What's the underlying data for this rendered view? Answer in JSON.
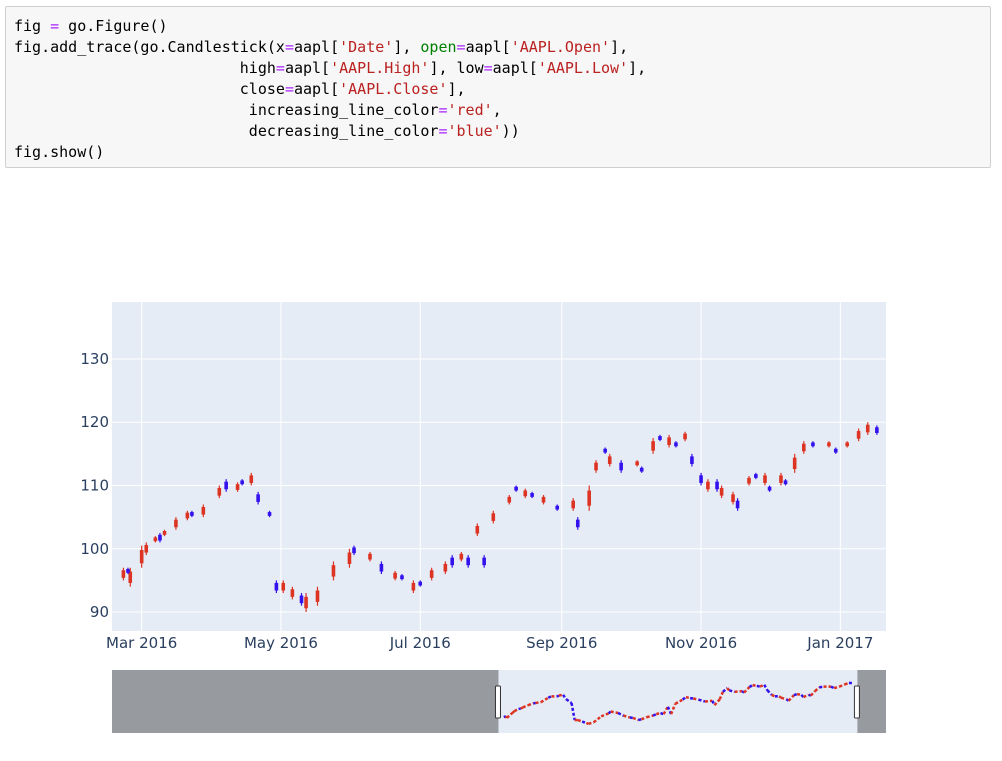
{
  "code": {
    "lines": [
      [
        {
          "t": "fig "
        },
        {
          "t": "=",
          "c": "op"
        },
        {
          "t": " go.Figure()"
        }
      ],
      [
        {
          "t": "fig.add_trace(go.Candlestick(x"
        },
        {
          "t": "=",
          "c": "op"
        },
        {
          "t": "aapl["
        },
        {
          "t": "'Date'",
          "c": "str"
        },
        {
          "t": "], "
        },
        {
          "t": "open",
          "c": "kw"
        },
        {
          "t": "=",
          "c": "op"
        },
        {
          "t": "aapl["
        },
        {
          "t": "'AAPL.Open'",
          "c": "str"
        },
        {
          "t": "],"
        }
      ],
      [
        {
          "t": "                         high"
        },
        {
          "t": "=",
          "c": "op"
        },
        {
          "t": "aapl["
        },
        {
          "t": "'AAPL.High'",
          "c": "str"
        },
        {
          "t": "], low"
        },
        {
          "t": "=",
          "c": "op"
        },
        {
          "t": "aapl["
        },
        {
          "t": "'AAPL.Low'",
          "c": "str"
        },
        {
          "t": "],"
        }
      ],
      [
        {
          "t": "                         close"
        },
        {
          "t": "=",
          "c": "op"
        },
        {
          "t": "aapl["
        },
        {
          "t": "'AAPL.Close'",
          "c": "str"
        },
        {
          "t": "],"
        }
      ],
      [
        {
          "t": "                          increasing_line_color"
        },
        {
          "t": "=",
          "c": "op"
        },
        {
          "t": "'red'",
          "c": "str"
        },
        {
          "t": ","
        }
      ],
      [
        {
          "t": "                          decreasing_line_color"
        },
        {
          "t": "=",
          "c": "op"
        },
        {
          "t": "'blue'",
          "c": "str"
        },
        {
          "t": "))"
        }
      ],
      [
        {
          "t": "fig.show()"
        }
      ]
    ]
  },
  "colors": {
    "plot_bg": "#e5ecf6",
    "grid": "#ffffff",
    "increasing": "#dd3322",
    "decreasing": "#3311ee",
    "axis_text": "#2a3f5f",
    "mask": "#8a8c8f",
    "code_bg": "#f7f7f7"
  },
  "chart_data": {
    "type": "candlestick",
    "title": "",
    "xlabel": "",
    "ylabel": "",
    "x_tick_labels": [
      "Mar 2016",
      "May 2016",
      "Jul 2016",
      "Sep 2016",
      "Nov 2016",
      "Jan 2017"
    ],
    "y_tick_labels": [
      "90",
      "100",
      "110",
      "120",
      "130"
    ],
    "ylim": [
      87,
      139
    ],
    "xlim": [
      "2016-02-17",
      "2017-01-21"
    ],
    "grid": true,
    "legend": "none",
    "rangeslider": {
      "visible": true,
      "selected_range": [
        "2016-02-17",
        "2017-01-21"
      ],
      "full_range": [
        "2015-02-17",
        "2017-02-17"
      ]
    },
    "series": [
      {
        "name": "increasing",
        "points": [
          [
            "2016-02-22",
            95,
            97
          ],
          [
            "2016-02-25",
            94,
            97
          ],
          [
            "2016-03-01",
            97,
            100.5
          ],
          [
            "2016-03-03",
            99,
            101
          ],
          [
            "2016-03-07",
            101,
            102
          ],
          [
            "2016-03-11",
            102,
            103
          ],
          [
            "2016-03-16",
            103,
            105
          ],
          [
            "2016-03-21",
            104.5,
            106
          ],
          [
            "2016-03-28",
            105,
            107
          ],
          [
            "2016-04-04",
            108,
            110
          ],
          [
            "2016-04-12",
            109,
            110.5
          ],
          [
            "2016-04-18",
            110,
            112
          ],
          [
            "2016-05-02",
            93,
            95
          ],
          [
            "2016-05-06",
            92,
            94
          ],
          [
            "2016-05-12",
            90,
            93
          ],
          [
            "2016-05-17",
            91,
            94
          ],
          [
            "2016-05-24",
            95,
            98
          ],
          [
            "2016-05-31",
            97,
            100
          ],
          [
            "2016-06-09",
            98,
            99.5
          ],
          [
            "2016-06-20",
            95,
            96.5
          ],
          [
            "2016-06-28",
            93,
            95
          ],
          [
            "2016-07-06",
            95,
            97
          ],
          [
            "2016-07-12",
            96,
            98
          ],
          [
            "2016-07-19",
            98,
            99.5
          ],
          [
            "2016-07-26",
            102,
            104
          ],
          [
            "2016-08-02",
            104,
            106
          ],
          [
            "2016-08-09",
            107,
            108.5
          ],
          [
            "2016-08-16",
            108,
            109.5
          ],
          [
            "2016-08-24",
            107,
            108.5
          ],
          [
            "2016-09-06",
            106,
            108
          ],
          [
            "2016-09-13",
            106,
            110
          ],
          [
            "2016-09-16",
            112,
            114
          ],
          [
            "2016-09-22",
            113,
            115
          ],
          [
            "2016-10-04",
            113,
            114
          ],
          [
            "2016-10-11",
            115,
            117.5
          ],
          [
            "2016-10-18",
            116,
            118
          ],
          [
            "2016-10-25",
            117,
            118.5
          ],
          [
            "2016-11-04",
            109,
            111
          ],
          [
            "2016-11-10",
            108,
            110
          ],
          [
            "2016-11-15",
            107,
            109
          ],
          [
            "2016-11-22",
            110,
            111.5
          ],
          [
            "2016-11-29",
            110,
            112
          ],
          [
            "2016-12-06",
            110,
            112
          ],
          [
            "2016-12-12",
            112,
            115
          ],
          [
            "2016-12-16",
            115,
            117
          ],
          [
            "2016-12-27",
            116,
            117
          ],
          [
            "2017-01-04",
            116,
            117
          ],
          [
            "2017-01-09",
            117,
            119
          ],
          [
            "2017-01-13",
            118,
            120
          ]
        ]
      },
      {
        "name": "decreasing",
        "points": [
          [
            "2016-02-24",
            96,
            97
          ],
          [
            "2016-03-09",
            101,
            102.5
          ],
          [
            "2016-03-23",
            105,
            106
          ],
          [
            "2016-04-07",
            109,
            111
          ],
          [
            "2016-04-14",
            110,
            111
          ],
          [
            "2016-04-21",
            107,
            109
          ],
          [
            "2016-04-26",
            105,
            106
          ],
          [
            "2016-04-29",
            93,
            95
          ],
          [
            "2016-05-10",
            91,
            93
          ],
          [
            "2016-06-02",
            99,
            100.5
          ],
          [
            "2016-06-14",
            96,
            98
          ],
          [
            "2016-06-23",
            95,
            96
          ],
          [
            "2016-07-01",
            94,
            95
          ],
          [
            "2016-07-15",
            97,
            99
          ],
          [
            "2016-07-22",
            97,
            99
          ],
          [
            "2016-07-29",
            97,
            99
          ],
          [
            "2016-08-12",
            109,
            110
          ],
          [
            "2016-08-19",
            108,
            109
          ],
          [
            "2016-08-30",
            106,
            107
          ],
          [
            "2016-09-08",
            103,
            105
          ],
          [
            "2016-09-20",
            115,
            116
          ],
          [
            "2016-09-27",
            112,
            114
          ],
          [
            "2016-10-06",
            112,
            113
          ],
          [
            "2016-10-14",
            117,
            118
          ],
          [
            "2016-10-21",
            116,
            117
          ],
          [
            "2016-10-28",
            113,
            115
          ],
          [
            "2016-11-01",
            110,
            112
          ],
          [
            "2016-11-08",
            109,
            111
          ],
          [
            "2016-11-17",
            106,
            108
          ],
          [
            "2016-11-25",
            111,
            112
          ],
          [
            "2016-12-01",
            109,
            110
          ],
          [
            "2016-12-08",
            110,
            111
          ],
          [
            "2016-12-20",
            116,
            117
          ],
          [
            "2016-12-30",
            115,
            116
          ],
          [
            "2017-01-17",
            118,
            119.5
          ]
        ]
      }
    ]
  }
}
